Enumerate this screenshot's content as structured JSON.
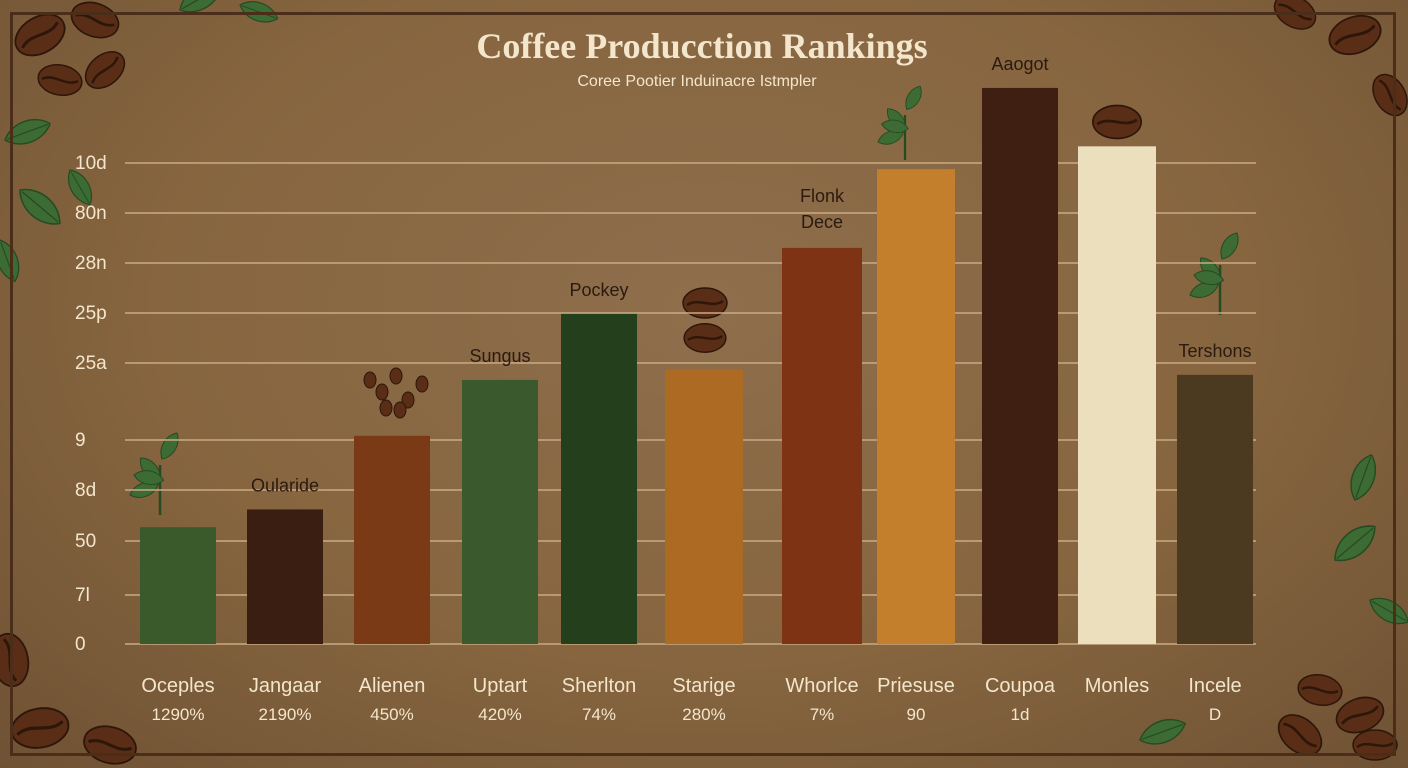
{
  "chart_data": {
    "type": "bar",
    "title": "Coffee Producction Rankings",
    "subtitle": "Coree Pootier Induinacre Istmpler",
    "y_ticks": [
      "10d",
      "80n",
      "28n",
      "25p",
      "25a",
      "9",
      "8d",
      "50",
      "7l",
      "0"
    ],
    "grid": true,
    "categories": [
      "Oceples",
      "Jangaar",
      "Alienen",
      "Uptart",
      "Sherlton",
      "Starige",
      "Whorlce",
      "Priesuse",
      "Coupoa",
      "Monles",
      "Incele"
    ],
    "value_labels": [
      "1290%",
      "2190%",
      "450%",
      "420%",
      "74%",
      "280%",
      "7%",
      "90",
      "1d",
      "",
      "D"
    ],
    "annotations": [
      "",
      "Oularide",
      "",
      "Sungus",
      "Pockey",
      "",
      "Flonk Dece",
      "",
      "Aaogot",
      "",
      "Tershons"
    ],
    "values": [
      4.6,
      5.3,
      8.2,
      10.4,
      13.0,
      10.8,
      15.6,
      18.7,
      21.9,
      19.6,
      10.6
    ],
    "ylim": [
      0,
      23
    ],
    "colors": [
      "#3b5a2c",
      "#3a1e12",
      "#7a3a16",
      "#3a5a2e",
      "#233f1c",
      "#ad6a22",
      "#7e3414",
      "#c47f2c",
      "#3e1f11",
      "#ecdfbd",
      "#4b3a20"
    ]
  },
  "decor": {
    "leaf_color": "#3c6b34",
    "bean_color": "#5a2e16"
  }
}
